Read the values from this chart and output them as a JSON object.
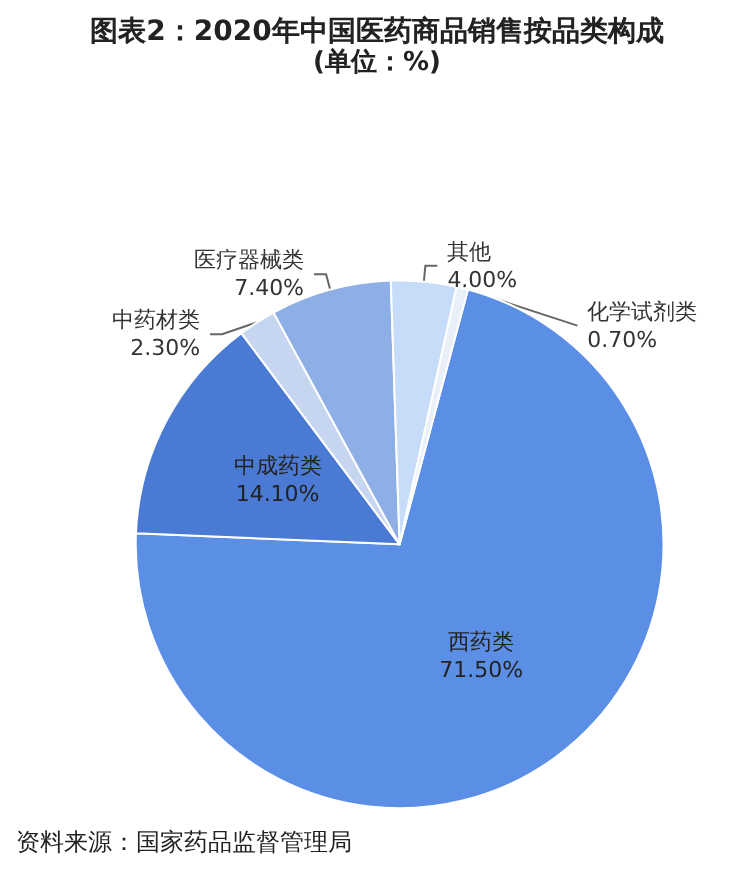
{
  "chart_data": {
    "type": "pie",
    "title": "图表2：2020年中国医药商品销售按品类构成",
    "subtitle": "(单位：%)",
    "categories": [
      "西药类",
      "中成药类",
      "中药材类",
      "医疗器械类",
      "其他",
      "化学试剂类"
    ],
    "values": [
      71.5,
      14.1,
      2.3,
      7.4,
      4.0,
      0.7
    ],
    "value_labels": [
      "71.50%",
      "14.10%",
      "2.30%",
      "7.40%",
      "4.00%",
      "0.70%"
    ],
    "colors": [
      "#5b8fe6",
      "#4a7ad3",
      "#c6d6f0",
      "#8eafe6",
      "#c7dcf8",
      "#eaf0f9"
    ],
    "legend": false,
    "annotations": [
      "资料来源：国家药品监督管理局"
    ]
  }
}
